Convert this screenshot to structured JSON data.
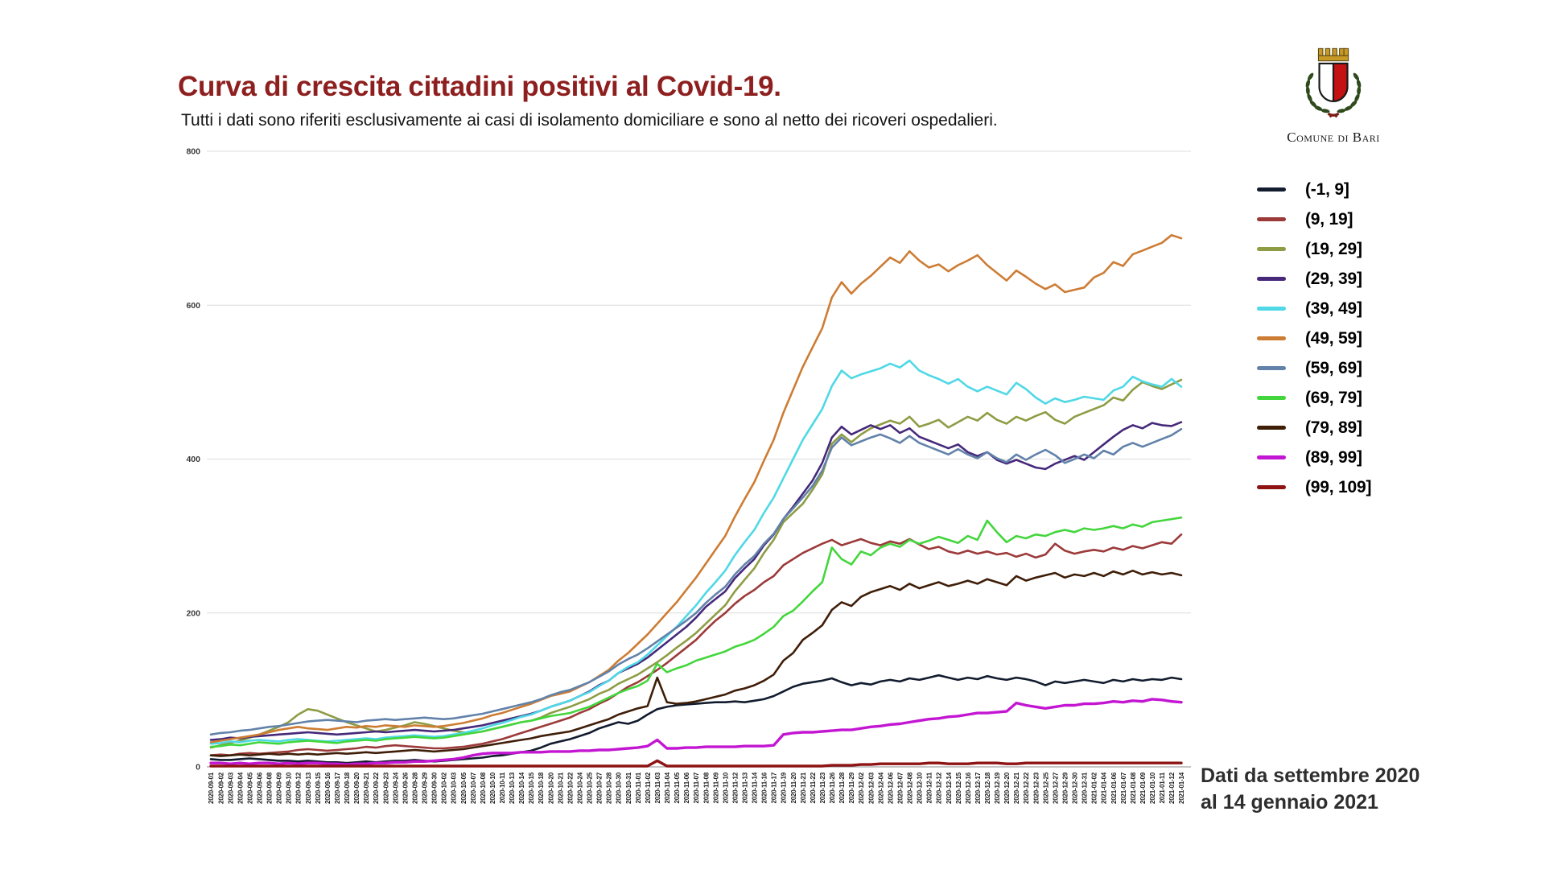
{
  "header": {
    "title": "Curva di crescita cittadini positivi al Covid-19.",
    "subtitle": "Tutti i dati sono riferiti esclusivamente ai casi di isolamento domiciliare e sono al netto dei ricoveri ospedalieri."
  },
  "logo": {
    "caption": "Comune di Bari"
  },
  "footnote": {
    "line1": "Dati da settembre 2020",
    "line2": "al 14 gennaio 2021"
  },
  "chart_data": {
    "type": "line",
    "title": "Curva di crescita cittadini positivi al Covid-19.",
    "xlabel": "",
    "ylabel": "",
    "ylim": [
      0,
      800
    ],
    "y_ticks": [
      0,
      200,
      400,
      600,
      800
    ],
    "grid": true,
    "legend_position": "right",
    "x": [
      "2020-09-01",
      "2020-09-02",
      "2020-09-03",
      "2020-09-04",
      "2020-09-05",
      "2020-09-06",
      "2020-09-08",
      "2020-09-09",
      "2020-09-10",
      "2020-09-12",
      "2020-09-13",
      "2020-09-15",
      "2020-09-16",
      "2020-09-17",
      "2020-09-18",
      "2020-09-20",
      "2020-09-21",
      "2020-09-22",
      "2020-09-23",
      "2020-09-24",
      "2020-09-26",
      "2020-09-28",
      "2020-09-29",
      "2020-09-30",
      "2020-10-02",
      "2020-10-03",
      "2020-10-05",
      "2020-10-07",
      "2020-10-08",
      "2020-10-10",
      "2020-10-11",
      "2020-10-13",
      "2020-10-14",
      "2020-10-15",
      "2020-10-18",
      "2020-10-20",
      "2020-10-21",
      "2020-10-22",
      "2020-10-24",
      "2020-10-25",
      "2020-10-27",
      "2020-10-28",
      "2020-10-30",
      "2020-10-31",
      "2020-11-01",
      "2020-11-02",
      "2020-11-03",
      "2020-11-04",
      "2020-11-05",
      "2020-11-06",
      "2020-11-07",
      "2020-11-08",
      "2020-11-09",
      "2020-11-10",
      "2020-11-12",
      "2020-11-13",
      "2020-11-14",
      "2020-11-16",
      "2020-11-17",
      "2020-11-19",
      "2020-11-20",
      "2020-11-21",
      "2020-11-22",
      "2020-11-23",
      "2020-11-26",
      "2020-11-28",
      "2020-11-29",
      "2020-12-02",
      "2020-12-03",
      "2020-12-04",
      "2020-12-06",
      "2020-12-07",
      "2020-12-08",
      "2020-12-10",
      "2020-12-11",
      "2020-12-12",
      "2020-12-14",
      "2020-12-15",
      "2020-12-16",
      "2020-12-17",
      "2020-12-18",
      "2020-12-19",
      "2020-12-20",
      "2020-12-21",
      "2020-12-22",
      "2020-12-23",
      "2020-12-25",
      "2020-12-27",
      "2020-12-29",
      "2020-12-30",
      "2020-12-31",
      "2021-01-02",
      "2021-01-04",
      "2021-01-06",
      "2021-01-07",
      "2021-01-08",
      "2021-01-09",
      "2021-01-10",
      "2021-01-11",
      "2021-01-12",
      "2021-01-14"
    ],
    "series": [
      {
        "name": "(-1, 9]",
        "color": "#121c2e",
        "values": [
          10,
          9,
          9,
          10,
          11,
          10,
          9,
          8,
          8,
          7,
          8,
          7,
          6,
          6,
          5,
          6,
          7,
          6,
          7,
          8,
          8,
          9,
          8,
          7,
          8,
          9,
          10,
          11,
          12,
          14,
          15,
          17,
          19,
          21,
          25,
          30,
          33,
          36,
          40,
          44,
          50,
          54,
          58,
          56,
          60,
          68,
          75,
          78,
          80,
          81,
          82,
          83,
          84,
          84,
          85,
          84,
          86,
          88,
          92,
          98,
          104,
          108,
          110,
          112,
          115,
          110,
          106,
          109,
          107,
          111,
          113,
          111,
          115,
          113,
          116,
          119,
          116,
          113,
          116,
          114,
          118,
          115,
          113,
          116,
          114,
          111,
          106,
          111,
          109,
          111,
          113,
          111,
          109,
          113,
          111,
          114,
          112,
          114,
          113,
          116,
          114
        ]
      },
      {
        "name": "(9, 19]",
        "color": "#9c3a3a",
        "values": [
          15,
          16,
          15,
          17,
          18,
          17,
          18,
          19,
          20,
          22,
          23,
          22,
          21,
          22,
          23,
          24,
          26,
          25,
          27,
          28,
          27,
          26,
          25,
          24,
          24,
          25,
          26,
          28,
          30,
          33,
          36,
          40,
          44,
          48,
          52,
          56,
          60,
          64,
          70,
          75,
          82,
          88,
          96,
          104,
          110,
          118,
          126,
          135,
          145,
          155,
          165,
          178,
          190,
          200,
          212,
          222,
          230,
          240,
          248,
          262,
          270,
          278,
          284,
          290,
          295,
          288,
          292,
          296,
          291,
          288,
          293,
          290,
          296,
          289,
          283,
          286,
          280,
          277,
          281,
          277,
          280,
          276,
          278,
          273,
          277,
          272,
          276,
          290,
          281,
          277,
          280,
          282,
          280,
          285,
          282,
          287,
          284,
          288,
          292,
          290,
          302
        ]
      },
      {
        "name": "(19, 29]",
        "color": "#8e9c44",
        "values": [
          25,
          28,
          31,
          34,
          38,
          42,
          47,
          52,
          58,
          68,
          75,
          73,
          68,
          63,
          58,
          54,
          50,
          46,
          48,
          51,
          54,
          58,
          56,
          53,
          50,
          47,
          45,
          44,
          46,
          49,
          52,
          55,
          58,
          60,
          64,
          70,
          74,
          78,
          83,
          88,
          95,
          100,
          108,
          114,
          120,
          128,
          136,
          145,
          155,
          164,
          174,
          186,
          198,
          210,
          228,
          243,
          258,
          278,
          295,
          318,
          330,
          342,
          360,
          380,
          420,
          432,
          422,
          432,
          440,
          445,
          450,
          446,
          455,
          442,
          446,
          451,
          441,
          448,
          455,
          450,
          460,
          451,
          446,
          455,
          450,
          456,
          461,
          451,
          446,
          455,
          460,
          465,
          470,
          480,
          476,
          490,
          500,
          495,
          491,
          497,
          503
        ]
      },
      {
        "name": "(29, 39]",
        "color": "#46297b",
        "values": [
          35,
          36,
          38,
          37,
          39,
          40,
          41,
          42,
          43,
          44,
          45,
          44,
          43,
          42,
          43,
          44,
          45,
          46,
          45,
          46,
          47,
          48,
          47,
          46,
          47,
          48,
          50,
          52,
          54,
          57,
          60,
          63,
          66,
          69,
          73,
          78,
          82,
          86,
          92,
          98,
          106,
          112,
          122,
          128,
          134,
          142,
          152,
          162,
          172,
          182,
          194,
          208,
          218,
          228,
          245,
          258,
          270,
          288,
          302,
          322,
          338,
          355,
          372,
          395,
          428,
          442,
          432,
          438,
          444,
          439,
          444,
          434,
          440,
          429,
          424,
          419,
          414,
          419,
          409,
          404,
          409,
          399,
          394,
          399,
          394,
          389,
          387,
          394,
          399,
          404,
          399,
          409,
          419,
          429,
          438,
          444,
          440,
          447,
          444,
          443,
          448
        ]
      },
      {
        "name": "(39, 49]",
        "color": "#4fd8e6",
        "values": [
          30,
          31,
          33,
          32,
          34,
          35,
          34,
          33,
          35,
          36,
          35,
          34,
          33,
          34,
          35,
          36,
          37,
          36,
          38,
          39,
          40,
          41,
          40,
          39,
          40,
          42,
          44,
          47,
          50,
          54,
          57,
          61,
          65,
          68,
          73,
          78,
          82,
          86,
          92,
          97,
          105,
          112,
          122,
          130,
          136,
          146,
          158,
          170,
          182,
          196,
          210,
          226,
          240,
          255,
          275,
          292,
          308,
          330,
          350,
          375,
          400,
          425,
          445,
          465,
          495,
          515,
          505,
          510,
          514,
          518,
          524,
          519,
          528,
          515,
          509,
          504,
          498,
          504,
          494,
          488,
          494,
          489,
          484,
          499,
          491,
          480,
          472,
          479,
          474,
          477,
          481,
          479,
          477,
          489,
          494,
          507,
          501,
          497,
          494,
          504,
          494
        ]
      },
      {
        "name": "(49, 59]",
        "color": "#cd7c33",
        "values": [
          32,
          34,
          36,
          38,
          40,
          42,
          45,
          48,
          50,
          52,
          50,
          49,
          48,
          50,
          52,
          51,
          53,
          52,
          54,
          53,
          52,
          54,
          53,
          52,
          53,
          55,
          57,
          60,
          63,
          67,
          70,
          74,
          78,
          82,
          87,
          92,
          95,
          98,
          104,
          110,
          118,
          126,
          138,
          148,
          160,
          172,
          186,
          200,
          214,
          230,
          246,
          264,
          282,
          300,
          325,
          348,
          370,
          398,
          425,
          460,
          490,
          520,
          545,
          570,
          610,
          630,
          615,
          628,
          638,
          650,
          662,
          655,
          670,
          658,
          649,
          653,
          644,
          652,
          658,
          665,
          652,
          642,
          632,
          645,
          637,
          628,
          621,
          627,
          617,
          620,
          623,
          636,
          642,
          656,
          651,
          666,
          671,
          676,
          681,
          691,
          687
        ]
      },
      {
        "name": "(59, 69]",
        "color": "#6282aa",
        "values": [
          42,
          44,
          45,
          47,
          48,
          50,
          52,
          53,
          55,
          57,
          59,
          60,
          61,
          60,
          59,
          58,
          60,
          61,
          62,
          61,
          62,
          63,
          64,
          63,
          62,
          63,
          65,
          67,
          69,
          72,
          75,
          78,
          81,
          84,
          88,
          93,
          97,
          100,
          105,
          110,
          117,
          124,
          133,
          140,
          146,
          154,
          163,
          172,
          181,
          190,
          200,
          213,
          224,
          234,
          250,
          263,
          274,
          290,
          303,
          322,
          336,
          350,
          365,
          385,
          415,
          428,
          418,
          423,
          428,
          432,
          427,
          421,
          430,
          421,
          416,
          411,
          406,
          413,
          406,
          401,
          409,
          401,
          396,
          406,
          399,
          406,
          412,
          405,
          395,
          400,
          406,
          401,
          411,
          406,
          416,
          421,
          416,
          421,
          426,
          431,
          439
        ]
      },
      {
        "name": "(69, 79]",
        "color": "#43d63c",
        "values": [
          26,
          27,
          29,
          28,
          30,
          32,
          31,
          30,
          32,
          33,
          34,
          33,
          32,
          31,
          33,
          34,
          35,
          34,
          36,
          37,
          38,
          39,
          38,
          37,
          38,
          40,
          42,
          44,
          46,
          49,
          52,
          55,
          58,
          60,
          63,
          66,
          68,
          70,
          74,
          78,
          84,
          90,
          96,
          101,
          105,
          112,
          134,
          123,
          128,
          132,
          138,
          142,
          146,
          150,
          156,
          160,
          165,
          173,
          182,
          196,
          203,
          215,
          228,
          240,
          285,
          270,
          263,
          280,
          275,
          285,
          290,
          286,
          295,
          290,
          294,
          299,
          295,
          291,
          300,
          295,
          320,
          305,
          292,
          300,
          297,
          302,
          300,
          305,
          308,
          305,
          310,
          308,
          310,
          313,
          310,
          315,
          312,
          318,
          320,
          322,
          324
        ]
      },
      {
        "name": "(79, 89]",
        "color": "#3f1e08",
        "values": [
          15,
          14,
          15,
          16,
          15,
          16,
          17,
          16,
          17,
          16,
          17,
          16,
          17,
          18,
          17,
          18,
          19,
          18,
          19,
          20,
          21,
          22,
          21,
          20,
          21,
          22,
          23,
          25,
          27,
          29,
          31,
          33,
          35,
          37,
          40,
          42,
          44,
          46,
          50,
          54,
          58,
          62,
          68,
          72,
          76,
          79,
          116,
          84,
          82,
          83,
          85,
          88,
          91,
          94,
          99,
          102,
          106,
          112,
          120,
          138,
          148,
          165,
          174,
          184,
          204,
          214,
          209,
          221,
          227,
          231,
          235,
          230,
          238,
          232,
          236,
          240,
          235,
          238,
          242,
          238,
          244,
          240,
          236,
          248,
          242,
          246,
          249,
          252,
          246,
          250,
          248,
          252,
          248,
          254,
          250,
          255,
          250,
          253,
          250,
          252,
          249
        ]
      },
      {
        "name": "(89, 99]",
        "color": "#c316d2",
        "values": [
          5,
          5,
          4,
          5,
          4,
          5,
          5,
          4,
          5,
          4,
          5,
          5,
          4,
          4,
          3,
          4,
          4,
          5,
          5,
          6,
          6,
          7,
          7,
          8,
          9,
          10,
          12,
          15,
          17,
          18,
          18,
          18,
          19,
          19,
          19,
          20,
          20,
          20,
          21,
          21,
          22,
          22,
          23,
          24,
          25,
          27,
          35,
          24,
          24,
          25,
          25,
          26,
          26,
          26,
          26,
          27,
          27,
          27,
          28,
          42,
          44,
          45,
          45,
          46,
          47,
          48,
          48,
          50,
          52,
          53,
          55,
          56,
          58,
          60,
          62,
          63,
          65,
          66,
          68,
          70,
          70,
          71,
          72,
          83,
          80,
          78,
          76,
          78,
          80,
          80,
          82,
          82,
          83,
          85,
          84,
          86,
          85,
          88,
          87,
          85,
          84
        ]
      },
      {
        "name": "(99, 109]",
        "color": "#8e1313",
        "values": [
          1,
          1,
          1,
          1,
          1,
          1,
          1,
          1,
          1,
          1,
          1,
          1,
          1,
          1,
          1,
          1,
          1,
          1,
          1,
          1,
          1,
          1,
          1,
          1,
          1,
          1,
          1,
          1,
          1,
          1,
          1,
          1,
          1,
          1,
          1,
          1,
          1,
          1,
          1,
          1,
          1,
          1,
          1,
          1,
          1,
          1,
          8,
          1,
          1,
          1,
          1,
          1,
          1,
          1,
          1,
          1,
          1,
          1,
          1,
          1,
          1,
          1,
          1,
          1,
          2,
          2,
          2,
          3,
          3,
          4,
          4,
          4,
          4,
          4,
          5,
          5,
          4,
          4,
          4,
          5,
          5,
          5,
          4,
          4,
          5,
          5,
          5,
          5,
          5,
          5,
          5,
          5,
          5,
          5,
          5,
          5,
          5,
          5,
          5,
          5,
          5
        ]
      }
    ]
  }
}
